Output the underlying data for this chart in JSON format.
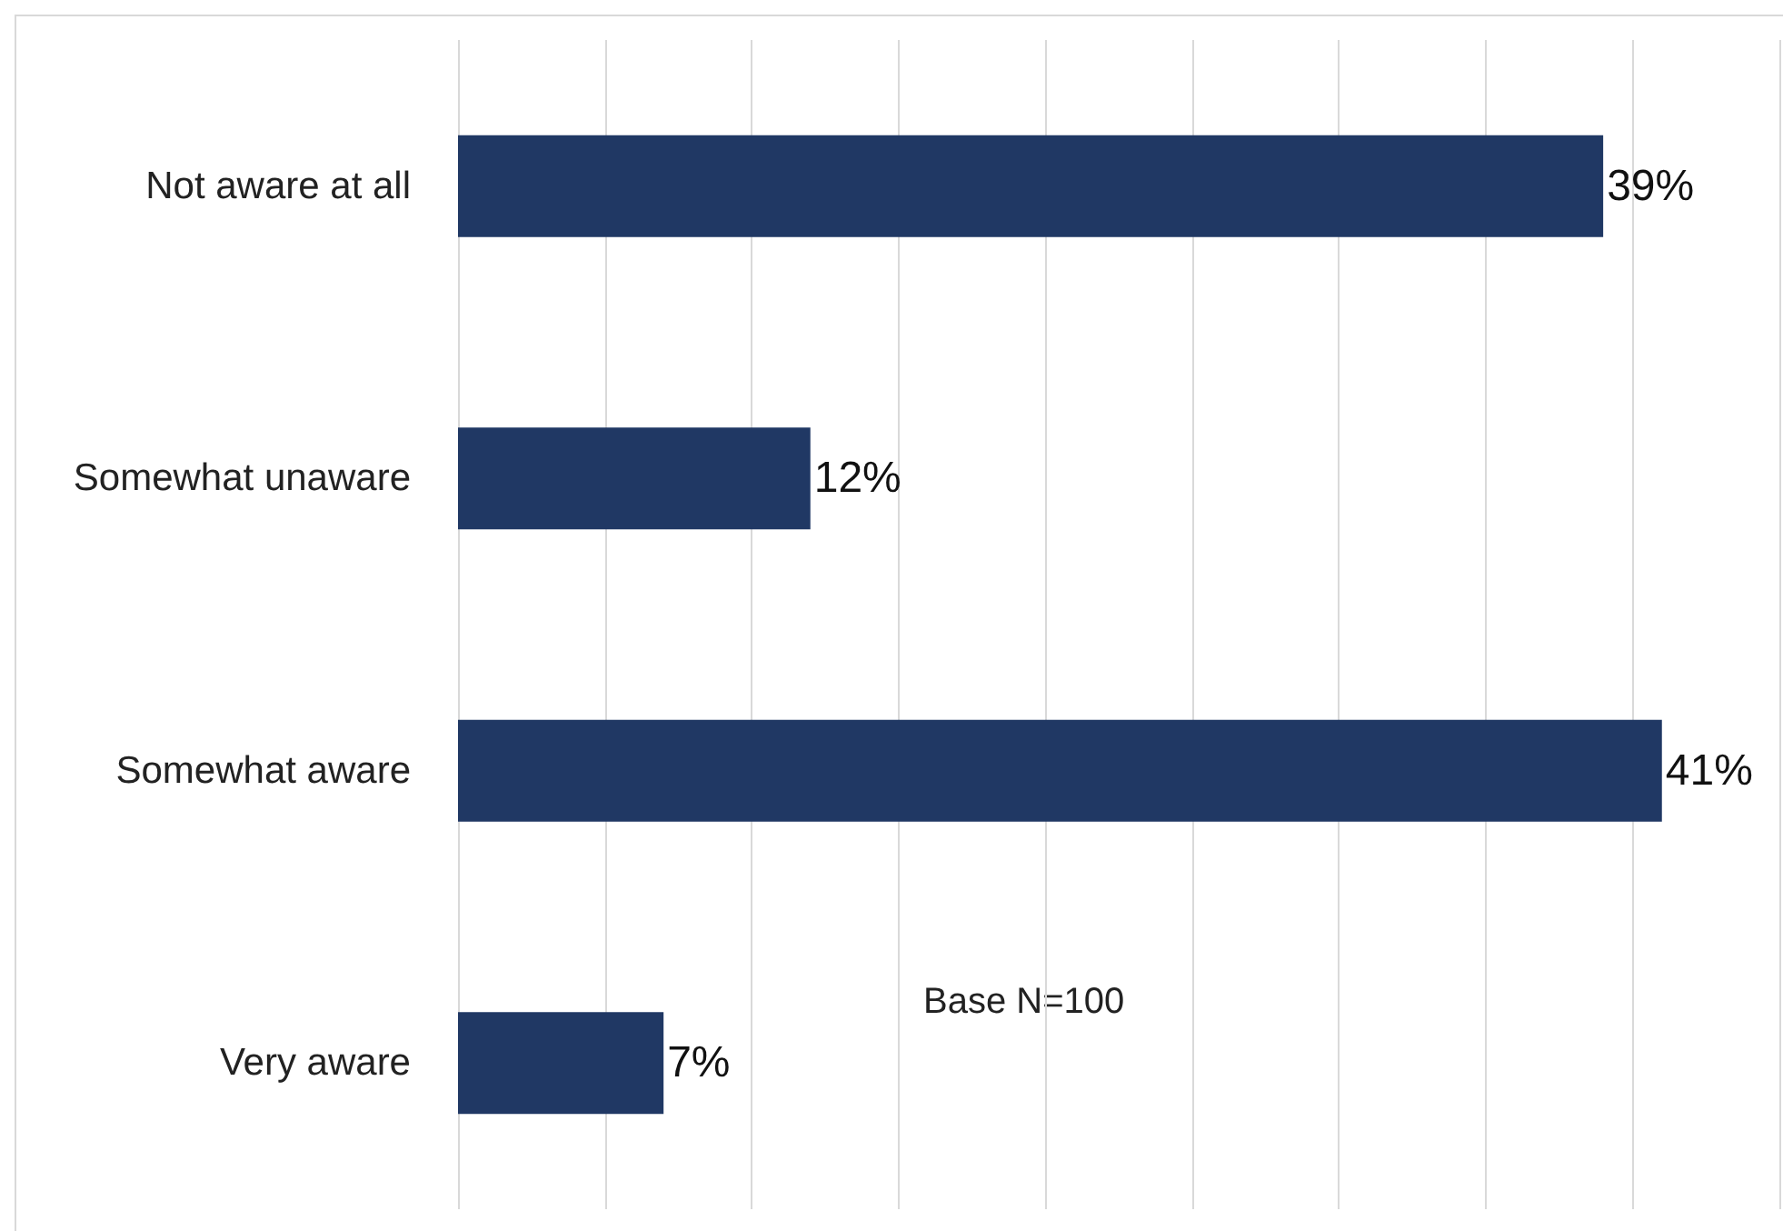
{
  "chart_data": {
    "type": "bar",
    "orientation": "horizontal",
    "categories": [
      "Not aware at all",
      "Somewhat unaware",
      "Somewhat aware",
      "Very aware"
    ],
    "values": [
      39,
      12,
      41,
      7
    ],
    "color": "#203864",
    "value_labels": [
      "39%",
      "12%",
      "41%",
      "7%"
    ],
    "xlim": [
      0,
      45
    ],
    "xticks": [
      {
        "value": 0,
        "label": null
      },
      {
        "value": 5,
        "label": null
      },
      {
        "value": 10,
        "label": null
      },
      {
        "value": 15,
        "label": null
      },
      {
        "value": 20,
        "label": null
      },
      {
        "value": 25,
        "label": null
      },
      {
        "value": 30,
        "label": null
      },
      {
        "value": 35,
        "label": null
      },
      {
        "value": 40,
        "label": null
      },
      {
        "value": 45,
        "label": null
      }
    ],
    "tick_labels": "y",
    "grid": "x",
    "annotations": [
      "Base N=100"
    ]
  }
}
